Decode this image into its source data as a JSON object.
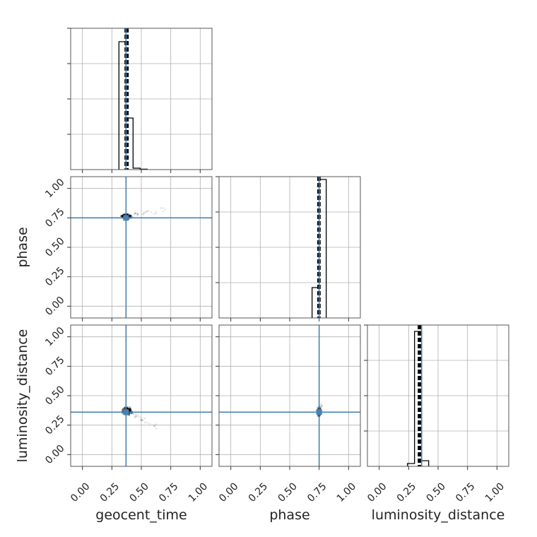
{
  "chart_data": {
    "type": "corner",
    "parameters": [
      "geocent_time",
      "phase",
      "luminosity_distance"
    ],
    "axis_labels": {
      "x": [
        "geocent_time",
        "phase",
        "luminosity_distance"
      ],
      "y": [
        "phase",
        "luminosity_distance"
      ]
    },
    "range": [
      -0.1,
      1.1
    ],
    "ticks": [
      0.0,
      0.25,
      0.5,
      0.75,
      1.0
    ],
    "tick_labels": [
      "0.00",
      "0.25",
      "0.50",
      "0.75",
      "1.00"
    ],
    "grid": true,
    "truths": {
      "geocent_time": 0.37,
      "phase": 0.75,
      "luminosity_distance": 0.36
    },
    "truth_color": "#4682b4",
    "hist_color": "#000000",
    "histograms": [
      {
        "param": "geocent_time",
        "bins": [
          0.31,
          0.37,
          0.43,
          0.49,
          0.55
        ],
        "values": [
          0.905,
          0.365,
          0.01,
          0.003
        ],
        "median": 0.375,
        "interval": [
          0.365,
          0.385
        ]
      },
      {
        "param": "phase",
        "bins": [
          0.69,
          0.75,
          0.81
        ],
        "values": [
          0.215,
          0.98
        ],
        "median": 0.748,
        "interval": [
          0.742,
          0.755
        ]
      },
      {
        "param": "luminosity_distance",
        "bins": [
          0.24,
          0.3,
          0.36,
          0.42
        ],
        "values": [
          0.02,
          0.955,
          0.04
        ],
        "median": 0.345,
        "interval": [
          0.335,
          0.357
        ]
      }
    ],
    "scatter": [
      {
        "x_param": "geocent_time",
        "y_param": "phase",
        "center": [
          0.37,
          0.765
        ],
        "spread": [
          0.05,
          0.02
        ],
        "tail_to": [
          0.7,
          0.82
        ]
      },
      {
        "x_param": "geocent_time",
        "y_param": "luminosity_distance",
        "center": [
          0.38,
          0.37
        ],
        "spread": [
          0.05,
          0.04
        ],
        "tail_to": [
          0.65,
          0.22
        ]
      },
      {
        "x_param": "phase",
        "y_param": "luminosity_distance",
        "center": [
          0.75,
          0.36
        ],
        "spread": [
          0.015,
          0.04
        ],
        "tail_to": [
          0.77,
          0.42
        ]
      }
    ]
  }
}
